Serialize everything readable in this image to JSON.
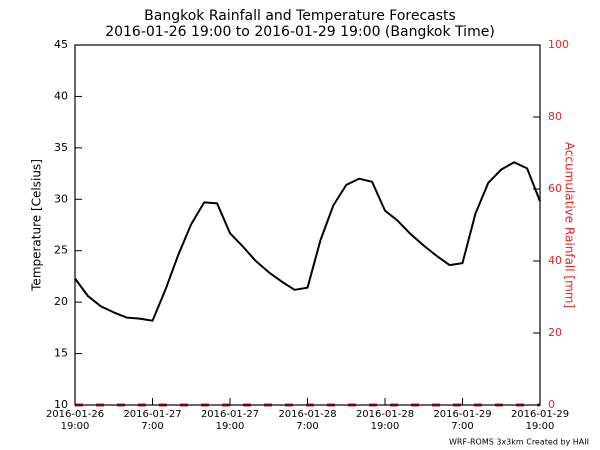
{
  "chart_data": {
    "type": "line",
    "title": "Bangkok Rainfall and Temperature Forecasts",
    "subtitle": "2016-01-26 19:00 to 2016-01-29 19:00 (Bangkok Time)",
    "ylabel": "Temperature [Celsius]",
    "y2label": "Accumulative Rainfall [mm]",
    "footer": "WRF-ROMS 3x3km   Created by HAII",
    "x": [
      "2016-01-26 19:00",
      "2016-01-26 21:00",
      "2016-01-26 23:00",
      "2016-01-27 01:00",
      "2016-01-27 03:00",
      "2016-01-27 05:00",
      "2016-01-27 07:00",
      "2016-01-27 09:00",
      "2016-01-27 11:00",
      "2016-01-27 13:00",
      "2016-01-27 15:00",
      "2016-01-27 17:00",
      "2016-01-27 19:00",
      "2016-01-27 21:00",
      "2016-01-27 23:00",
      "2016-01-28 01:00",
      "2016-01-28 03:00",
      "2016-01-28 05:00",
      "2016-01-28 07:00",
      "2016-01-28 09:00",
      "2016-01-28 11:00",
      "2016-01-28 13:00",
      "2016-01-28 15:00",
      "2016-01-28 17:00",
      "2016-01-28 19:00",
      "2016-01-28 21:00",
      "2016-01-28 23:00",
      "2016-01-29 01:00",
      "2016-01-29 03:00",
      "2016-01-29 05:00",
      "2016-01-29 07:00",
      "2016-01-29 09:00",
      "2016-01-29 11:00",
      "2016-01-29 13:00",
      "2016-01-29 15:00",
      "2016-01-29 17:00",
      "2016-01-29 19:00"
    ],
    "series": [
      {
        "color": "#000000",
        "dash": false,
        "axis": "y",
        "values": [
          22.3,
          20.6,
          19.6,
          19.0,
          18.5,
          18.4,
          18.2,
          21.2,
          24.6,
          27.6,
          29.7,
          29.6,
          26.7,
          25.4,
          24.0,
          22.9,
          22.0,
          21.2,
          21.4,
          26.0,
          29.4,
          31.4,
          32.0,
          31.7,
          28.9,
          27.9,
          26.6,
          25.5,
          24.5,
          23.6,
          23.8,
          28.6,
          31.6,
          32.9,
          33.6,
          33.0,
          29.8
        ]
      },
      {
        "color": "#e8221f",
        "dash": true,
        "axis": "y2",
        "values": [
          0,
          0,
          0,
          0,
          0,
          0,
          0,
          0,
          0,
          0,
          0,
          0,
          0,
          0,
          0,
          0,
          0,
          0,
          0,
          0,
          0,
          0,
          0,
          0,
          0,
          0,
          0,
          0,
          0,
          0,
          0,
          0,
          0,
          0,
          0,
          0,
          0
        ]
      }
    ],
    "xlim": [
      "2016-01-26 19:00",
      "2016-01-29 19:00"
    ],
    "xticks": [
      {
        "value": "2016-01-26 19:00",
        "label": "2016-01-26\n19:00"
      },
      {
        "value": "2016-01-27 07:00",
        "label": "2016-01-27\n7:00"
      },
      {
        "value": "2016-01-27 19:00",
        "label": "2016-01-27\n19:00"
      },
      {
        "value": "2016-01-28 07:00",
        "label": "2016-01-28\n7:00"
      },
      {
        "value": "2016-01-28 19:00",
        "label": "2016-01-28\n19:00"
      },
      {
        "value": "2016-01-29 07:00",
        "label": "2016-01-29\n7:00"
      },
      {
        "value": "2016-01-29 19:00",
        "label": "2016-01-29\n19:00"
      }
    ],
    "ylim": [
      10,
      45
    ],
    "yticks": [
      10,
      15,
      20,
      25,
      30,
      35,
      40,
      45
    ],
    "y2lim": [
      0,
      100
    ],
    "y2ticks": [
      0,
      20,
      40,
      60,
      80,
      100
    ],
    "y2color": "#e8221f",
    "grid": false
  }
}
